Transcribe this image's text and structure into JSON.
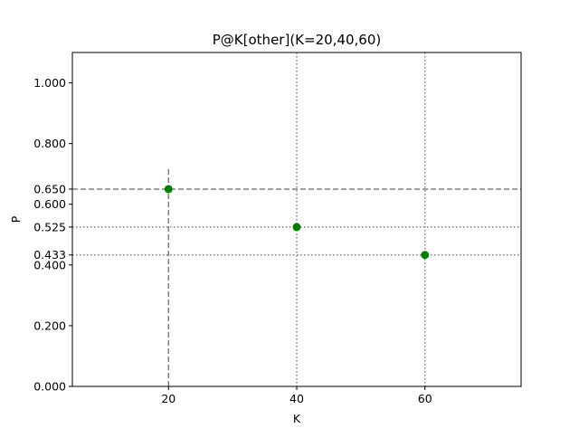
{
  "chart_data": {
    "type": "scatter",
    "title": "P@K[other](K=20,40,60)",
    "xlabel": "K",
    "ylabel": "P",
    "xlim": [
      5,
      75
    ],
    "ylim": [
      0,
      1.1
    ],
    "x_ticks": [
      20,
      40,
      60
    ],
    "x_tick_labels": [
      "20",
      "40",
      "60"
    ],
    "y_ticks": [
      0.0,
      0.2,
      0.4,
      0.433,
      0.525,
      0.6,
      0.65,
      0.8,
      1.0
    ],
    "y_tick_labels": [
      "0.000",
      "0.200",
      "0.400",
      "0.433",
      "0.525",
      "0.600",
      "0.650",
      "0.800",
      "1.000"
    ],
    "series": [
      {
        "x": [
          20,
          40,
          60
        ],
        "y": [
          0.65,
          0.525,
          0.433
        ],
        "color": "#008000",
        "marker": "circle"
      }
    ],
    "reference_lines": {
      "dashed": {
        "color": "#808080",
        "h": 0.65,
        "v": 20,
        "v_range": [
          0,
          0.72
        ]
      },
      "dotted": {
        "color": "#808080",
        "h": [
          0.525,
          0.433
        ],
        "v": [
          40,
          60
        ]
      }
    },
    "grid": false,
    "legend": "none"
  }
}
